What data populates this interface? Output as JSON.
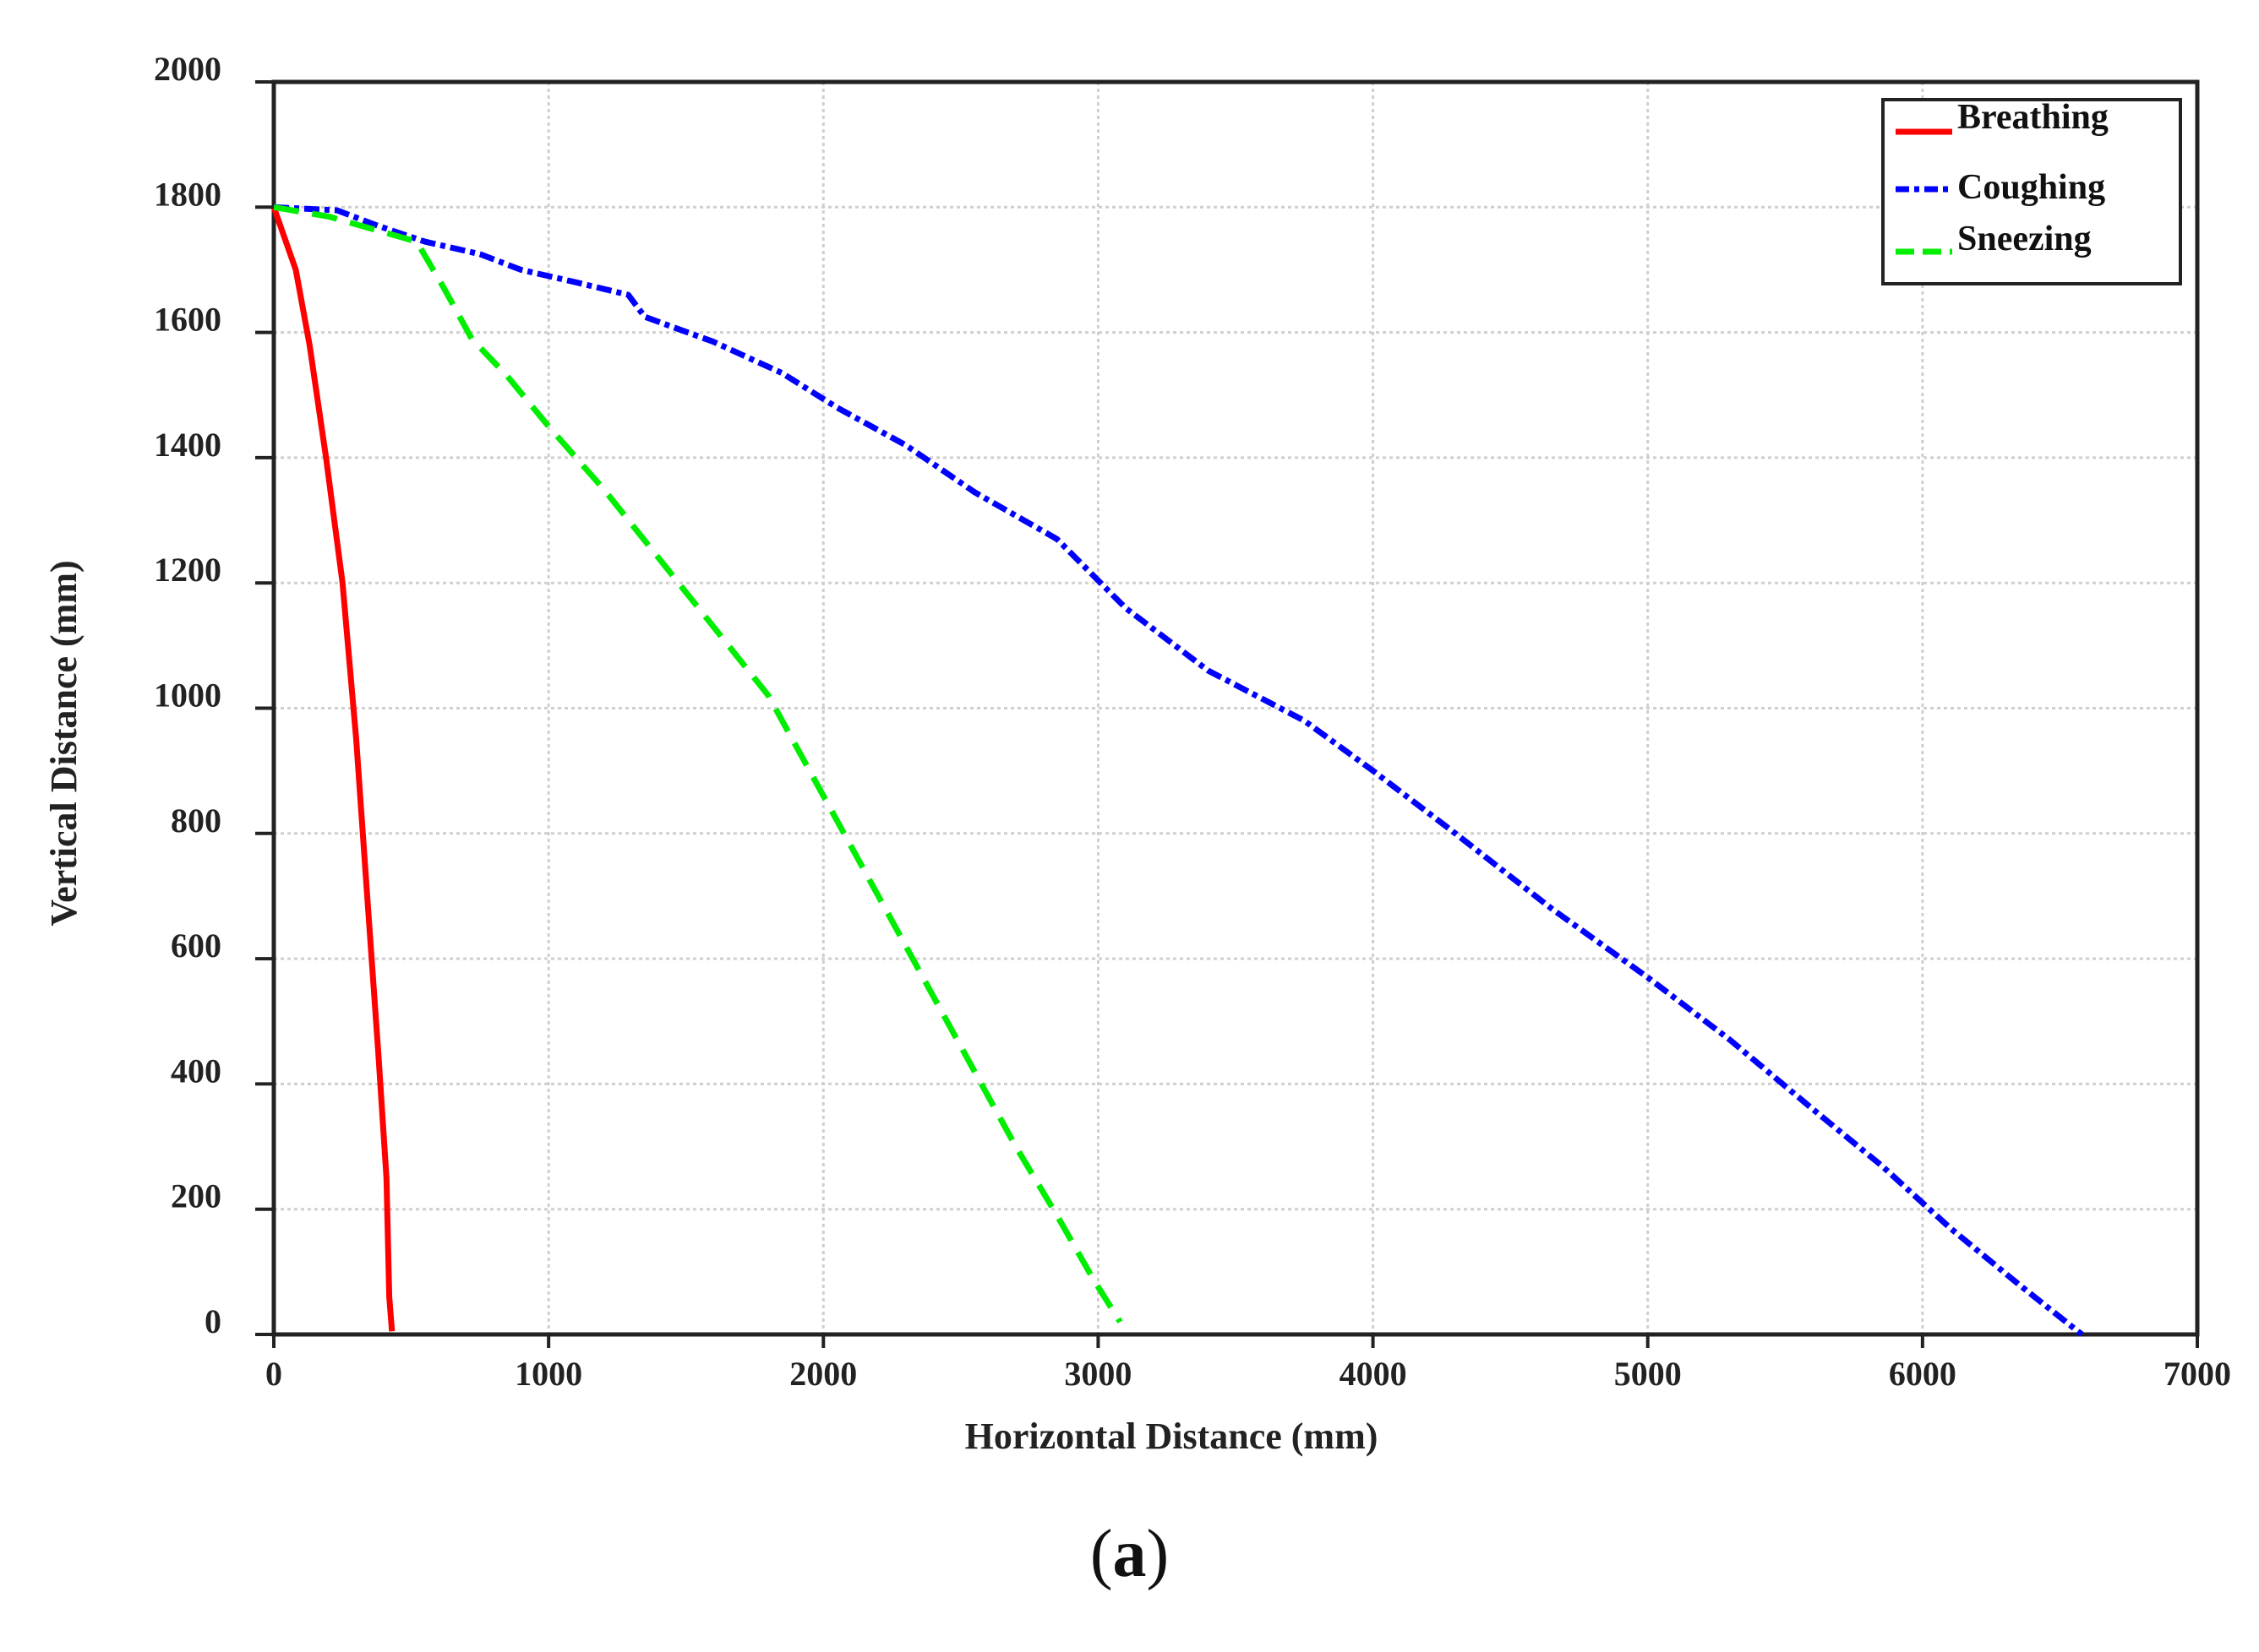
{
  "chart_data": {
    "type": "line",
    "xlabel": "Horizontal Distance (mm)",
    "ylabel": "Vertical Distance (mm)",
    "xlim": [
      0,
      7000
    ],
    "ylim": [
      0,
      2000
    ],
    "xticks": [
      "0",
      "1000",
      "2000",
      "3000",
      "4000",
      "5000",
      "6000",
      "7000"
    ],
    "yticks": [
      "0",
      "200",
      "400",
      "600",
      "800",
      "1000",
      "1200",
      "1400",
      "1600",
      "1800",
      "2000"
    ],
    "grid": true,
    "legend_position": "top-right",
    "series": [
      {
        "name": "Breathing",
        "color": "#ff0000",
        "style": "solid",
        "points": [
          [
            0,
            1800
          ],
          [
            80,
            1700
          ],
          [
            130,
            1580
          ],
          [
            190,
            1400
          ],
          [
            250,
            1200
          ],
          [
            300,
            950
          ],
          [
            340,
            700
          ],
          [
            380,
            450
          ],
          [
            410,
            250
          ],
          [
            420,
            60
          ],
          [
            430,
            5
          ]
        ]
      },
      {
        "name": "Coughing",
        "color": "#0000ff",
        "style": "dash-dot",
        "points": [
          [
            0,
            1800
          ],
          [
            230,
            1795
          ],
          [
            380,
            1770
          ],
          [
            550,
            1745
          ],
          [
            750,
            1725
          ],
          [
            900,
            1700
          ],
          [
            1100,
            1680
          ],
          [
            1290,
            1660
          ],
          [
            1350,
            1625
          ],
          [
            1600,
            1585
          ],
          [
            1850,
            1535
          ],
          [
            2050,
            1480
          ],
          [
            2300,
            1420
          ],
          [
            2550,
            1345
          ],
          [
            2850,
            1270
          ],
          [
            3100,
            1160
          ],
          [
            3400,
            1060
          ],
          [
            3750,
            980
          ],
          [
            4000,
            900
          ],
          [
            4300,
            800
          ],
          [
            4650,
            680
          ],
          [
            5000,
            570
          ],
          [
            5300,
            470
          ],
          [
            5600,
            360
          ],
          [
            5850,
            270
          ],
          [
            6100,
            170
          ],
          [
            6350,
            80
          ],
          [
            6580,
            0
          ]
        ]
      },
      {
        "name": "Sneezing",
        "color": "#00ee00",
        "style": "dashed",
        "points": [
          [
            0,
            1800
          ],
          [
            200,
            1785
          ],
          [
            400,
            1760
          ],
          [
            520,
            1745
          ],
          [
            620,
            1670
          ],
          [
            720,
            1590
          ],
          [
            850,
            1530
          ],
          [
            1000,
            1450
          ],
          [
            1200,
            1350
          ],
          [
            1400,
            1240
          ],
          [
            1600,
            1130
          ],
          [
            1800,
            1020
          ],
          [
            1950,
            900
          ],
          [
            2100,
            780
          ],
          [
            2250,
            660
          ],
          [
            2400,
            540
          ],
          [
            2550,
            420
          ],
          [
            2700,
            300
          ],
          [
            2850,
            190
          ],
          [
            2980,
            90
          ],
          [
            3080,
            20
          ]
        ]
      }
    ]
  },
  "panel_label": {
    "open": "(",
    "letter": "a",
    "close": ")"
  }
}
